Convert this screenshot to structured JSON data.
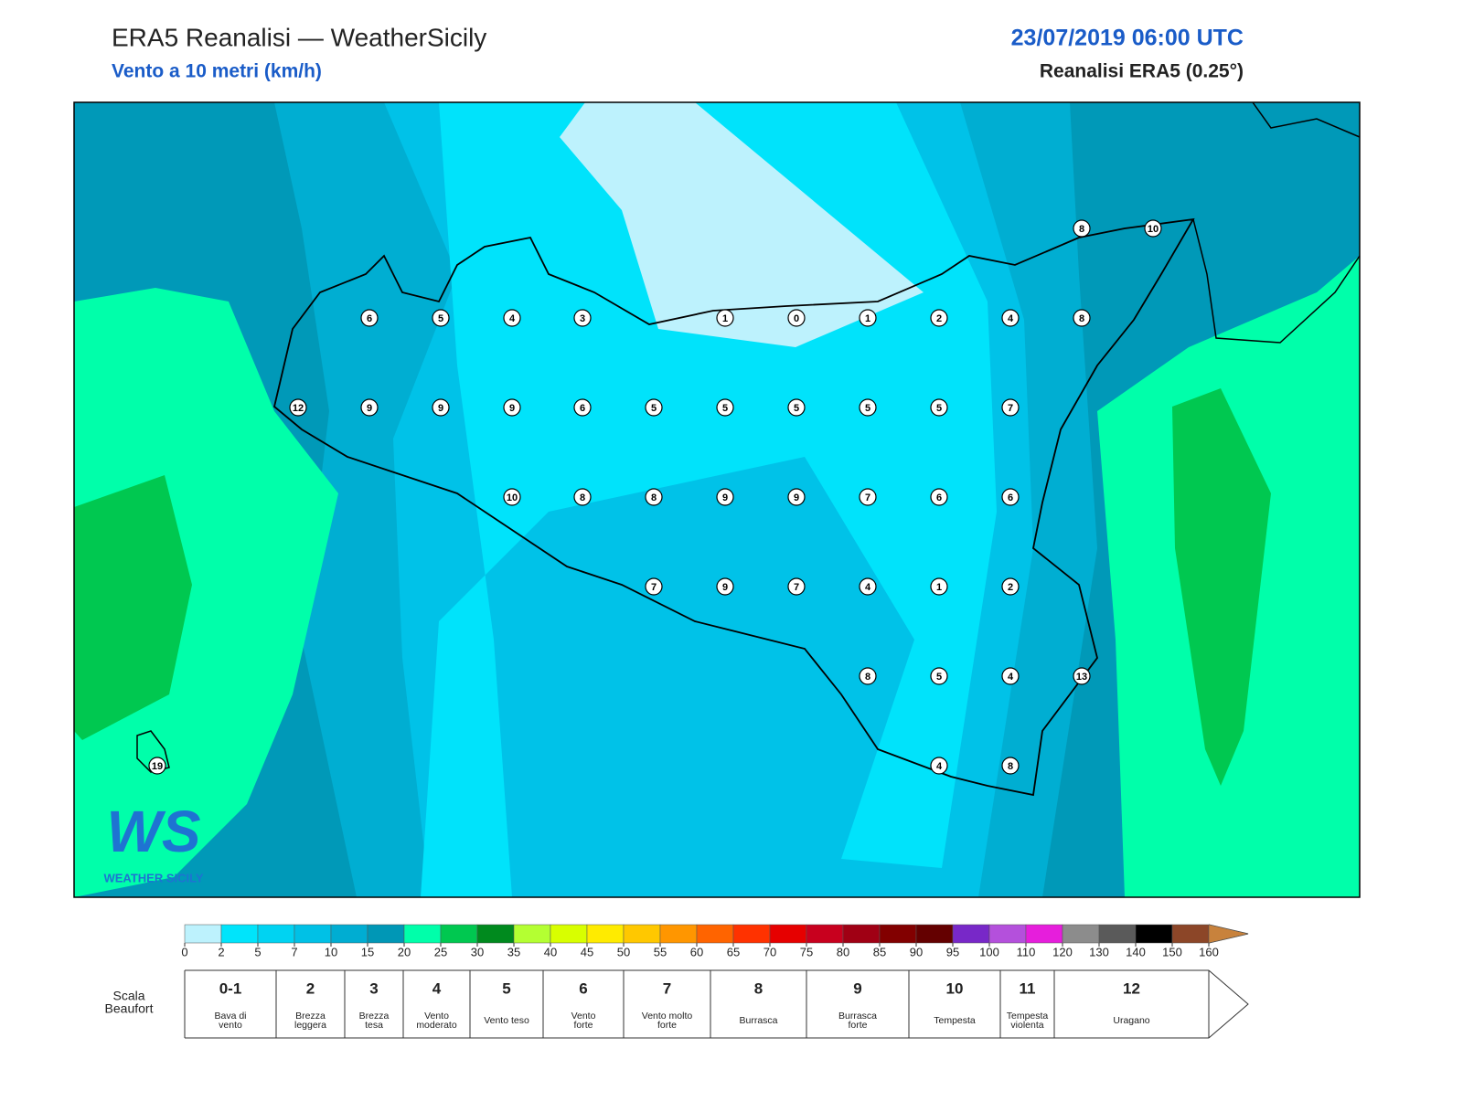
{
  "header": {
    "title": "ERA5 Reanalisi — WeatherSicily",
    "subtitle": "Vento a 10 metri (km/h)",
    "date": "23/07/2019 06:00 UTC",
    "source": "Reanalisi ERA5 (0.25°)"
  },
  "map": {
    "stations": [
      8,
      10,
      6,
      5,
      4,
      3,
      1,
      0,
      1,
      2,
      4,
      8,
      12,
      9,
      9,
      9,
      6,
      5,
      5,
      5,
      5,
      5,
      7,
      10,
      8,
      8,
      9,
      9,
      7,
      6,
      6,
      7,
      9,
      7,
      4,
      1,
      2,
      8,
      5,
      4,
      13,
      4,
      8,
      19
    ],
    "logo": {
      "mark": "WS",
      "text": "WEATHER SICILY"
    }
  },
  "colorbar": {
    "ticks": [
      0,
      2,
      5,
      7,
      10,
      15,
      20,
      25,
      30,
      35,
      40,
      45,
      50,
      55,
      60,
      65,
      70,
      75,
      80,
      85,
      90,
      95,
      100,
      110,
      120,
      130,
      140,
      150,
      160
    ],
    "colors": [
      "#bdf2fd",
      "#00e4fb",
      "#00d3f2",
      "#00c1e6",
      "#00add2",
      "#0097b6",
      "#00ffaa",
      "#00c850",
      "#008a1e",
      "#b4ff32",
      "#d8ff00",
      "#ffeb00",
      "#ffc800",
      "#ff9600",
      "#ff6400",
      "#ff3200",
      "#e60000",
      "#c8001e",
      "#a00014",
      "#820000",
      "#640000",
      "#7828c8",
      "#b450dc",
      "#e61edc",
      "#8c8c8c",
      "#5a5a5a",
      "#000000",
      "#8c4628",
      "#c8823c"
    ]
  },
  "beaufort": {
    "label": [
      "Scala",
      "Beaufort"
    ],
    "classes": [
      {
        "n": "0-1",
        "d": [
          "Bava di",
          "vento"
        ]
      },
      {
        "n": "2",
        "d": [
          "Brezza",
          "leggera"
        ]
      },
      {
        "n": "3",
        "d": [
          "Brezza",
          "tesa"
        ]
      },
      {
        "n": "4",
        "d": [
          "Vento",
          "moderato"
        ]
      },
      {
        "n": "5",
        "d": [
          "Vento teso"
        ]
      },
      {
        "n": "6",
        "d": [
          "Vento",
          "forte"
        ]
      },
      {
        "n": "7",
        "d": [
          "Vento molto",
          "forte"
        ]
      },
      {
        "n": "8",
        "d": [
          "Burrasca"
        ]
      },
      {
        "n": "9",
        "d": [
          "Burrasca",
          "forte"
        ]
      },
      {
        "n": "10",
        "d": [
          "Tempesta"
        ]
      },
      {
        "n": "11",
        "d": [
          "Tempesta",
          "violenta"
        ]
      },
      {
        "n": "12",
        "d": [
          "Uragano"
        ]
      }
    ]
  }
}
